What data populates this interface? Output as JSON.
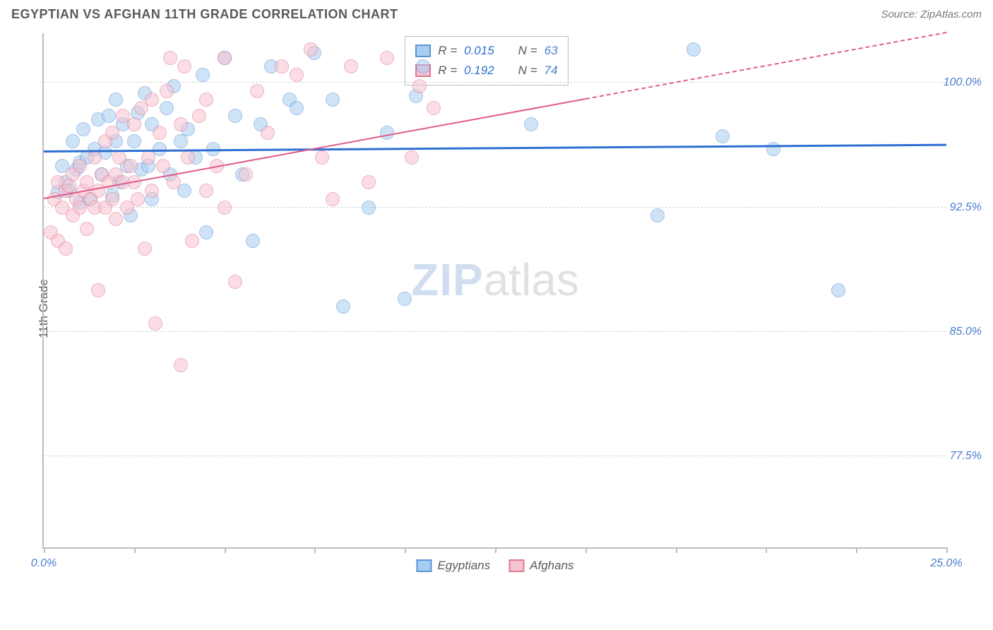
{
  "header": {
    "title": "EGYPTIAN VS AFGHAN 11TH GRADE CORRELATION CHART",
    "source": "Source: ZipAtlas.com"
  },
  "chart": {
    "type": "scatter",
    "y_axis_label": "11th Grade",
    "xlim": [
      0,
      25
    ],
    "ylim": [
      72,
      103
    ],
    "x_ticks": [
      0,
      2.5,
      5,
      7.5,
      10,
      12.5,
      15,
      17.5,
      20,
      22.5,
      25
    ],
    "x_tick_labels": {
      "0": "0.0%",
      "25": "25.0%"
    },
    "y_gridlines": [
      77.5,
      85.0,
      92.5,
      100.0
    ],
    "y_tick_labels": [
      "77.5%",
      "85.0%",
      "92.5%",
      "100.0%"
    ],
    "grid_color": "#d6d6d6",
    "axis_color": "#bdbdbd",
    "tick_label_color": "#4a7bd0",
    "x_end_label_color": "#4a7bd0",
    "background_color": "#ffffff",
    "marker_radius": 10,
    "marker_opacity": 0.55,
    "marker_border_width": 1.5,
    "watermark": {
      "zip": "ZIP",
      "atlas": "atlas"
    }
  },
  "series": [
    {
      "name": "Egyptians",
      "fill_color": "#a8cdf2",
      "border_color": "#5b94d6",
      "line_color": "#2e6fd1",
      "R_label": "R =",
      "R_value": "0.015",
      "N_label": "N =",
      "N_value": "63",
      "trend": {
        "x1": 0,
        "y1": 95.8,
        "x2": 25,
        "y2": 96.2,
        "width": 3,
        "dashed_from_x": null
      },
      "points": [
        [
          0.4,
          93.4
        ],
        [
          0.5,
          95.0
        ],
        [
          0.6,
          94.0
        ],
        [
          0.7,
          93.5
        ],
        [
          0.8,
          96.5
        ],
        [
          0.9,
          94.8
        ],
        [
          1.0,
          95.2
        ],
        [
          1.0,
          92.8
        ],
        [
          1.1,
          97.2
        ],
        [
          1.2,
          95.5
        ],
        [
          1.3,
          93.0
        ],
        [
          1.4,
          96.0
        ],
        [
          1.5,
          97.8
        ],
        [
          1.6,
          94.5
        ],
        [
          1.7,
          95.8
        ],
        [
          1.8,
          98.0
        ],
        [
          1.9,
          93.2
        ],
        [
          2.0,
          96.5
        ],
        [
          2.0,
          99.0
        ],
        [
          2.1,
          94.0
        ],
        [
          2.2,
          97.5
        ],
        [
          2.3,
          95.0
        ],
        [
          2.4,
          92.0
        ],
        [
          2.5,
          96.5
        ],
        [
          2.6,
          98.2
        ],
        [
          2.7,
          94.8
        ],
        [
          2.8,
          99.4
        ],
        [
          2.9,
          95.0
        ],
        [
          3.0,
          97.5
        ],
        [
          3.0,
          93.0
        ],
        [
          3.2,
          96.0
        ],
        [
          3.4,
          98.5
        ],
        [
          3.5,
          94.5
        ],
        [
          3.6,
          99.8
        ],
        [
          3.8,
          96.5
        ],
        [
          3.9,
          93.5
        ],
        [
          4.0,
          97.2
        ],
        [
          4.2,
          95.5
        ],
        [
          4.4,
          100.5
        ],
        [
          4.5,
          91.0
        ],
        [
          4.7,
          96.0
        ],
        [
          5.0,
          101.5
        ],
        [
          5.3,
          98.0
        ],
        [
          5.5,
          94.5
        ],
        [
          5.8,
          90.5
        ],
        [
          6.0,
          97.5
        ],
        [
          6.3,
          101.0
        ],
        [
          6.8,
          99.0
        ],
        [
          7.0,
          98.5
        ],
        [
          7.5,
          101.8
        ],
        [
          8.0,
          99.0
        ],
        [
          8.3,
          86.5
        ],
        [
          9.0,
          92.5
        ],
        [
          9.5,
          97.0
        ],
        [
          10.0,
          87.0
        ],
        [
          10.3,
          99.2
        ],
        [
          10.5,
          101.0
        ],
        [
          13.5,
          97.5
        ],
        [
          17.0,
          92.0
        ],
        [
          18.0,
          102.0
        ],
        [
          18.8,
          96.8
        ],
        [
          20.2,
          96.0
        ],
        [
          22.0,
          87.5
        ]
      ]
    },
    {
      "name": "Afghans",
      "fill_color": "#f6c3d1",
      "border_color": "#e2788f",
      "line_color": "#e15a8a",
      "R_label": "R =",
      "R_value": "0.192",
      "N_label": "N =",
      "N_value": "74",
      "trend": {
        "x1": 0,
        "y1": 93.0,
        "x2": 25,
        "y2": 103.0,
        "width": 2.5,
        "dashed_from_x": 15
      },
      "points": [
        [
          0.2,
          91.0
        ],
        [
          0.3,
          93.0
        ],
        [
          0.4,
          90.5
        ],
        [
          0.4,
          94.0
        ],
        [
          0.5,
          92.5
        ],
        [
          0.6,
          93.5
        ],
        [
          0.6,
          90.0
        ],
        [
          0.7,
          93.8
        ],
        [
          0.8,
          92.0
        ],
        [
          0.8,
          94.5
        ],
        [
          0.9,
          93.0
        ],
        [
          1.0,
          92.5
        ],
        [
          1.0,
          95.0
        ],
        [
          1.1,
          93.5
        ],
        [
          1.2,
          91.2
        ],
        [
          1.2,
          94.0
        ],
        [
          1.3,
          93.0
        ],
        [
          1.4,
          92.5
        ],
        [
          1.4,
          95.5
        ],
        [
          1.5,
          93.5
        ],
        [
          1.5,
          87.5
        ],
        [
          1.6,
          94.5
        ],
        [
          1.7,
          92.5
        ],
        [
          1.7,
          96.5
        ],
        [
          1.8,
          94.0
        ],
        [
          1.9,
          93.0
        ],
        [
          1.9,
          97.0
        ],
        [
          2.0,
          94.5
        ],
        [
          2.0,
          91.8
        ],
        [
          2.1,
          95.5
        ],
        [
          2.2,
          94.0
        ],
        [
          2.2,
          98.0
        ],
        [
          2.3,
          92.5
        ],
        [
          2.4,
          95.0
        ],
        [
          2.5,
          94.0
        ],
        [
          2.5,
          97.5
        ],
        [
          2.6,
          93.0
        ],
        [
          2.7,
          98.5
        ],
        [
          2.8,
          90.0
        ],
        [
          2.9,
          95.5
        ],
        [
          3.0,
          99.0
        ],
        [
          3.0,
          93.5
        ],
        [
          3.1,
          85.5
        ],
        [
          3.2,
          97.0
        ],
        [
          3.3,
          95.0
        ],
        [
          3.4,
          99.5
        ],
        [
          3.5,
          101.5
        ],
        [
          3.6,
          94.0
        ],
        [
          3.8,
          83.0
        ],
        [
          3.8,
          97.5
        ],
        [
          3.9,
          101.0
        ],
        [
          4.0,
          95.5
        ],
        [
          4.1,
          90.5
        ],
        [
          4.3,
          98.0
        ],
        [
          4.5,
          99.0
        ],
        [
          4.5,
          93.5
        ],
        [
          4.8,
          95.0
        ],
        [
          5.0,
          92.5
        ],
        [
          5.0,
          101.5
        ],
        [
          5.3,
          88.0
        ],
        [
          5.6,
          94.5
        ],
        [
          5.9,
          99.5
        ],
        [
          6.2,
          97.0
        ],
        [
          6.6,
          101.0
        ],
        [
          7.0,
          100.5
        ],
        [
          7.4,
          102.0
        ],
        [
          7.7,
          95.5
        ],
        [
          8.0,
          93.0
        ],
        [
          8.5,
          101.0
        ],
        [
          9.0,
          94.0
        ],
        [
          9.5,
          101.5
        ],
        [
          10.2,
          95.5
        ],
        [
          10.4,
          99.8
        ],
        [
          10.8,
          98.5
        ]
      ]
    }
  ],
  "legend_top": {
    "R_value_color": "#2e6fd1",
    "N_value_color": "#4a7bd0",
    "text_color": "#5a5a5a"
  },
  "legend_bottom": {
    "items": [
      "Egyptians",
      "Afghans"
    ]
  }
}
